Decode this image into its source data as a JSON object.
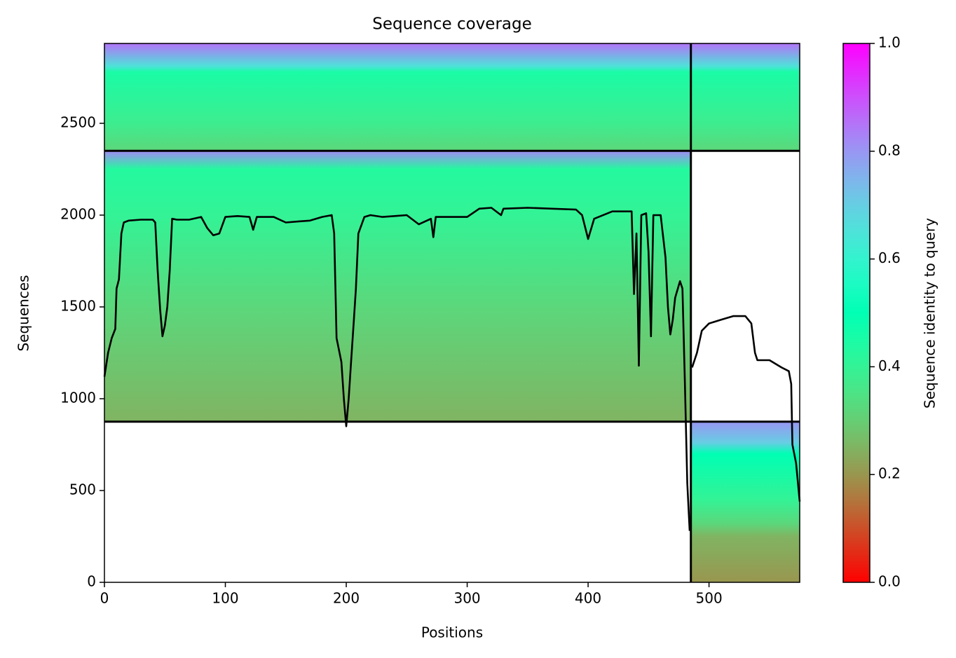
{
  "chart_data": {
    "type": "coverage",
    "title": "Sequence coverage",
    "x_label": "Positions",
    "y_label": "Sequences",
    "colorbar_label": "Sequence identity to query",
    "xlim": [
      0,
      575
    ],
    "ylim": [
      0,
      2935
    ],
    "xticks": [
      0,
      100,
      200,
      300,
      400,
      500
    ],
    "yticks": [
      0,
      500,
      1000,
      1500,
      2000,
      2500
    ],
    "colorbar_lim": [
      0,
      1
    ],
    "colorbar_ticks": [
      {
        "value": 0,
        "label": "0.0"
      },
      0.2,
      0.4,
      0.6,
      0.8,
      {
        "value": 1,
        "label": "1.0"
      }
    ],
    "colormap": "rainbow_r",
    "blocks": [
      {
        "x": [
          0,
          485
        ],
        "y": [
          875,
          2350
        ],
        "stops": [
          [
            875,
            0.25
          ],
          [
            1500,
            0.32
          ],
          [
            2000,
            0.4
          ],
          [
            2250,
            0.43
          ],
          [
            2350,
            0.82
          ]
        ]
      },
      {
        "x": [
          0,
          575
        ],
        "y": [
          2350,
          2935
        ],
        "stops": [
          [
            2350,
            0.32
          ],
          [
            2500,
            0.38
          ],
          [
            2780,
            0.45
          ],
          [
            2810,
            0.65
          ],
          [
            2935,
            0.85
          ]
        ]
      },
      {
        "x": [
          485,
          575
        ],
        "y": [
          0,
          875
        ],
        "stops": [
          [
            0,
            0.2
          ],
          [
            250,
            0.25
          ],
          [
            320,
            0.32
          ],
          [
            450,
            0.4
          ],
          [
            700,
            0.5
          ],
          [
            760,
            0.7
          ],
          [
            875,
            0.8
          ]
        ]
      }
    ],
    "boundaries_x": [
      485
    ],
    "boundaries_y": [
      875,
      2350
    ],
    "coverage": {
      "color": "#000000",
      "x": [
        0,
        3,
        6,
        9,
        10,
        12,
        14,
        16,
        20,
        30,
        40,
        42,
        44,
        46,
        48,
        50,
        52,
        54,
        56,
        60,
        70,
        80,
        85,
        90,
        95,
        100,
        110,
        120,
        123,
        126,
        140,
        150,
        160,
        170,
        180,
        188,
        190,
        192,
        196,
        198,
        200,
        202,
        204,
        206,
        208,
        210,
        215,
        220,
        230,
        240,
        250,
        260,
        270,
        272,
        274,
        290,
        300,
        310,
        320,
        328,
        330,
        350,
        370,
        390,
        395,
        400,
        405,
        420,
        436,
        438,
        440,
        442,
        444,
        448,
        450,
        452,
        454,
        460,
        464,
        466,
        468,
        470,
        472,
        476,
        478,
        480,
        482,
        484,
        485,
        486,
        490,
        494,
        500,
        510,
        520,
        530,
        535,
        538,
        540,
        550,
        560,
        566,
        568,
        569,
        572,
        575
      ],
      "values": [
        1120,
        1250,
        1330,
        1380,
        1600,
        1650,
        1900,
        1960,
        1970,
        1975,
        1975,
        1960,
        1700,
        1490,
        1340,
        1400,
        1500,
        1700,
        1980,
        1975,
        1975,
        1990,
        1930,
        1890,
        1900,
        1990,
        1995,
        1990,
        1920,
        1990,
        1990,
        1960,
        1965,
        1970,
        1990,
        2000,
        1900,
        1330,
        1200,
        1000,
        850,
        1000,
        1200,
        1400,
        1600,
        1900,
        1990,
        2000,
        1990,
        1995,
        2000,
        1950,
        1980,
        1880,
        1990,
        1990,
        1990,
        2035,
        2040,
        2000,
        2035,
        2040,
        2035,
        2030,
        2000,
        1870,
        1980,
        2020,
        2020,
        1570,
        1900,
        1180,
        2000,
        2010,
        1800,
        1340,
        2000,
        2000,
        1770,
        1500,
        1350,
        1430,
        1550,
        1640,
        1600,
        1100,
        540,
        280,
        null,
        1170,
        1250,
        1370,
        1410,
        1430,
        1450,
        1450,
        1410,
        1250,
        1210,
        1210,
        1170,
        1150,
        1080,
        750,
        650,
        440
      ]
    }
  }
}
